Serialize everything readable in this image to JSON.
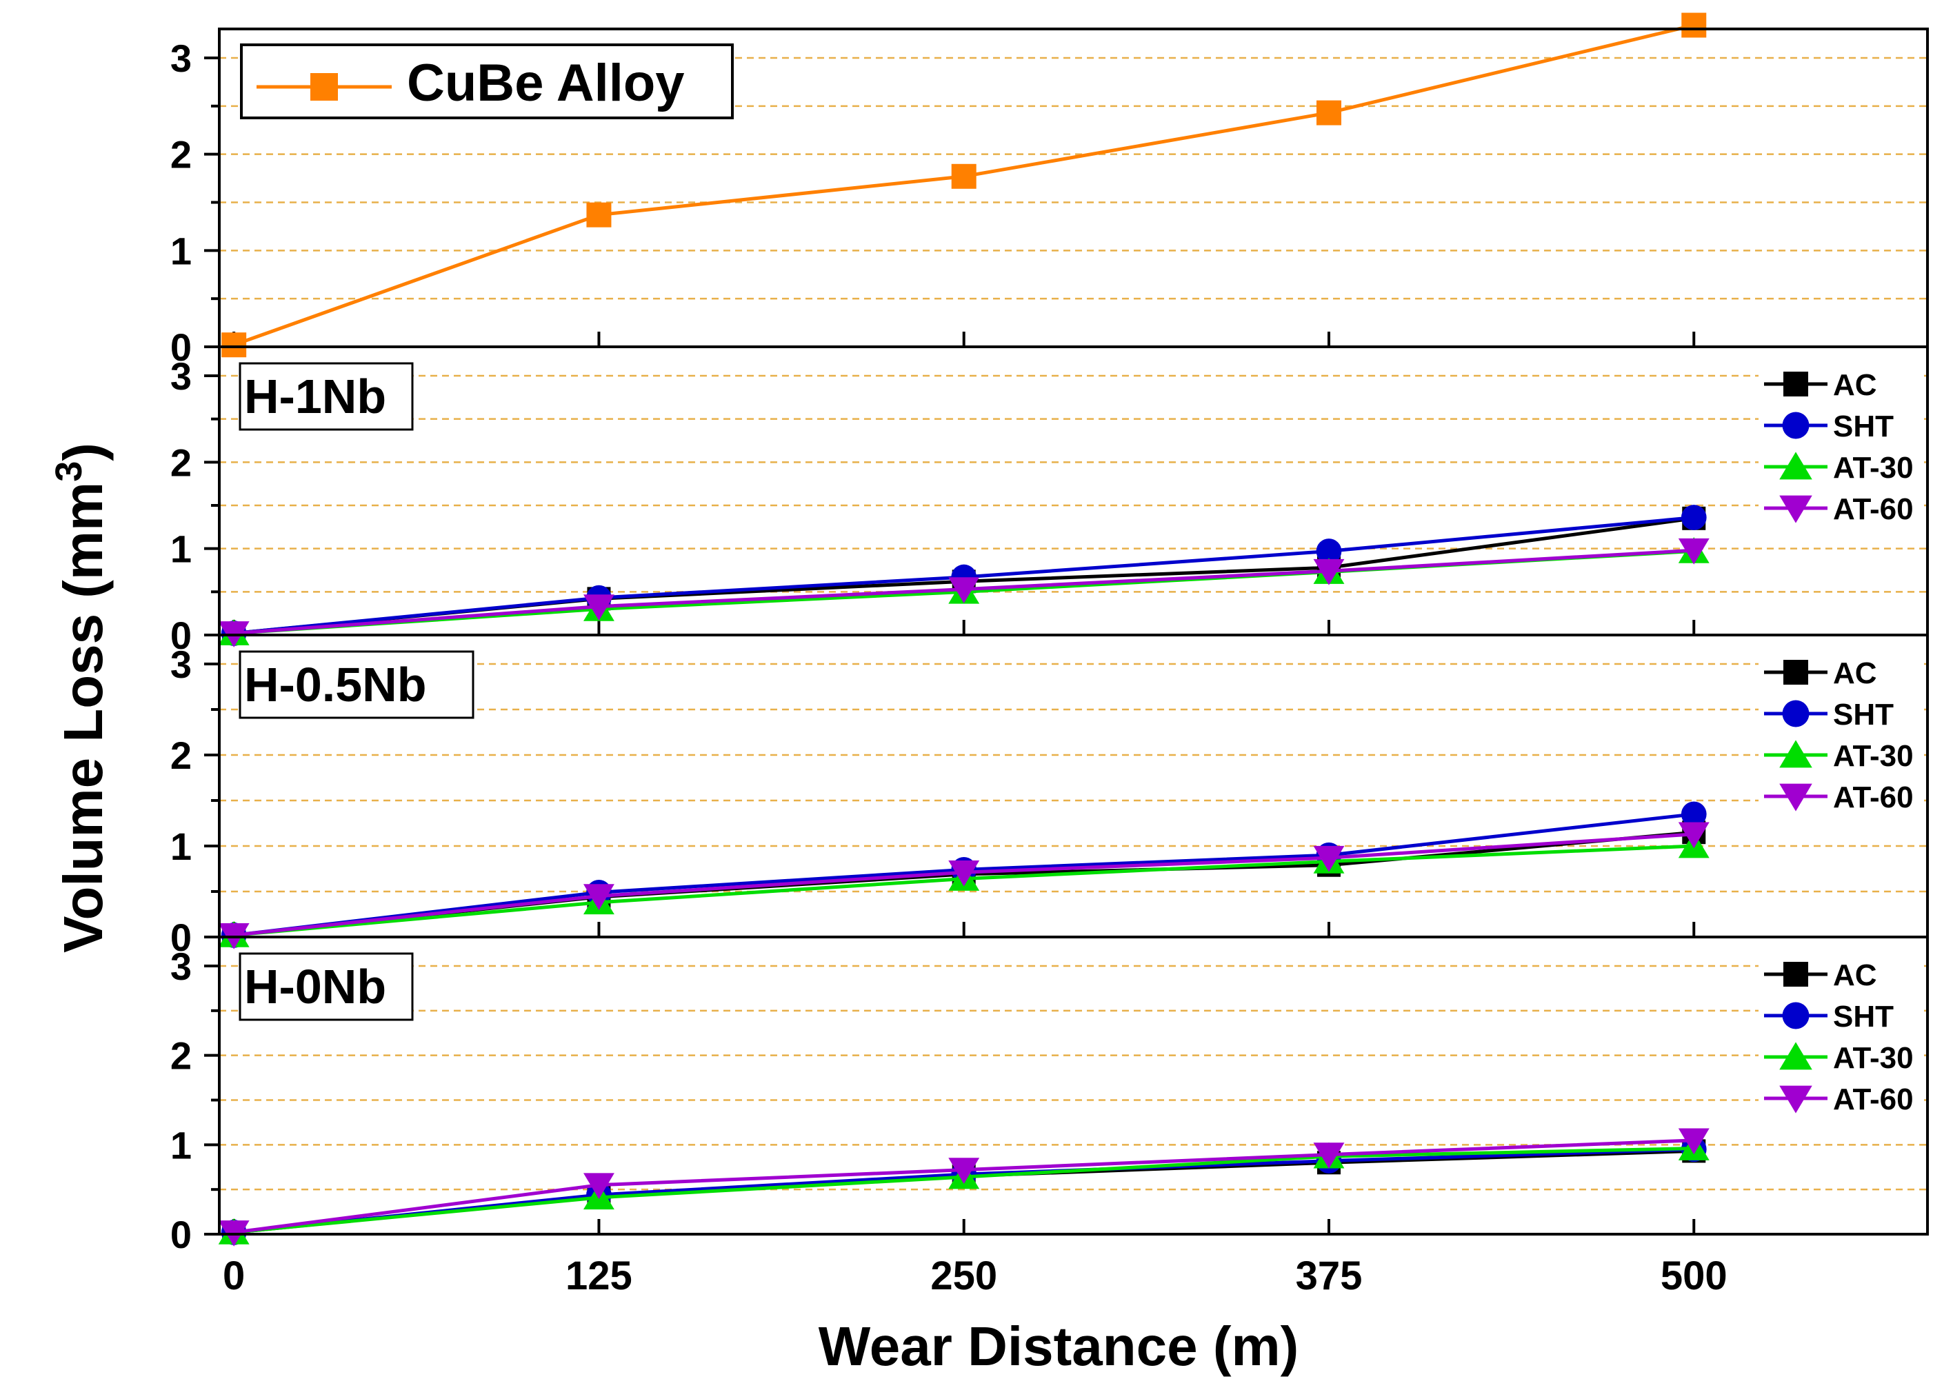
{
  "figure": {
    "xlabel": "Wear Distance (m)",
    "ylabel_main": "Volume Loss (mm",
    "ylabel_sup": "3",
    "ylabel_close": ")"
  },
  "chart_data": [
    {
      "type": "line",
      "panel_label": "CuBe Alloy",
      "x": [
        0,
        125,
        250,
        375,
        500
      ],
      "xlim": [
        -5,
        580
      ],
      "ylim": [
        0,
        3.4
      ],
      "xticks": [
        0,
        125,
        250,
        375,
        500
      ],
      "yticks": [
        0,
        1,
        2,
        3
      ],
      "grid_y": [
        0.5,
        1,
        1.5,
        2,
        2.5,
        3
      ],
      "legend_position": "top-left",
      "series": [
        {
          "name": "CuBe Alloy",
          "color": "#FF8000",
          "marker": "square",
          "values": [
            0.02,
            1.37,
            1.77,
            2.43,
            3.34
          ]
        }
      ]
    },
    {
      "type": "line",
      "panel_label": "H-1Nb",
      "x": [
        0,
        125,
        250,
        375,
        500
      ],
      "xlim": [
        -5,
        580
      ],
      "ylim": [
        0,
        3.4
      ],
      "xticks": [
        0,
        125,
        250,
        375,
        500
      ],
      "yticks": [
        0,
        1,
        2,
        3
      ],
      "grid_y": [
        0.5,
        1,
        1.5,
        2,
        2.5,
        3
      ],
      "legend_position": "top-right",
      "series": [
        {
          "name": "AC",
          "color": "#000000",
          "marker": "square",
          "values": [
            0.02,
            0.42,
            0.62,
            0.78,
            1.35
          ]
        },
        {
          "name": "SHT",
          "color": "#0000CC",
          "marker": "circle",
          "values": [
            0.02,
            0.43,
            0.67,
            0.97,
            1.36
          ]
        },
        {
          "name": "AT-30",
          "color": "#00DD00",
          "marker": "triangle-up",
          "values": [
            0.02,
            0.3,
            0.5,
            0.73,
            0.97
          ]
        },
        {
          "name": "AT-60",
          "color": "#A000D0",
          "marker": "triangle-down",
          "values": [
            0.02,
            0.33,
            0.53,
            0.74,
            0.98
          ]
        }
      ]
    },
    {
      "type": "line",
      "panel_label": "H-0.5Nb",
      "x": [
        0,
        125,
        250,
        375,
        500
      ],
      "xlim": [
        -5,
        580
      ],
      "ylim": [
        0,
        3.4
      ],
      "xticks": [
        0,
        125,
        250,
        375,
        500
      ],
      "yticks": [
        0,
        1,
        2,
        3
      ],
      "grid_y": [
        0.5,
        1,
        1.5,
        2,
        2.5,
        3
      ],
      "legend_position": "top-right",
      "series": [
        {
          "name": "AC",
          "color": "#000000",
          "marker": "square",
          "values": [
            0.02,
            0.44,
            0.69,
            0.79,
            1.15
          ]
        },
        {
          "name": "SHT",
          "color": "#0000CC",
          "marker": "circle",
          "values": [
            0.02,
            0.49,
            0.74,
            0.9,
            1.35
          ]
        },
        {
          "name": "AT-30",
          "color": "#00DD00",
          "marker": "triangle-up",
          "values": [
            0.02,
            0.38,
            0.64,
            0.83,
            1.0
          ]
        },
        {
          "name": "AT-60",
          "color": "#A000D0",
          "marker": "triangle-down",
          "values": [
            0.02,
            0.45,
            0.71,
            0.87,
            1.13
          ]
        }
      ]
    },
    {
      "type": "line",
      "panel_label": "H-0Nb",
      "x": [
        0,
        125,
        250,
        375,
        500
      ],
      "xlim": [
        -5,
        580
      ],
      "ylim": [
        0,
        3.4
      ],
      "xticks": [
        0,
        125,
        250,
        375,
        500
      ],
      "yticks": [
        0,
        1,
        2,
        3
      ],
      "grid_y": [
        0.5,
        1,
        1.5,
        2,
        2.5,
        3
      ],
      "legend_position": "top-right",
      "series": [
        {
          "name": "AC",
          "color": "#000000",
          "marker": "square",
          "values": [
            0.02,
            0.42,
            0.65,
            0.8,
            0.93
          ]
        },
        {
          "name": "SHT",
          "color": "#0000CC",
          "marker": "circle",
          "values": [
            0.02,
            0.44,
            0.67,
            0.82,
            0.95
          ]
        },
        {
          "name": "AT-30",
          "color": "#00DD00",
          "marker": "triangle-up",
          "values": [
            0.02,
            0.41,
            0.64,
            0.87,
            0.96
          ]
        },
        {
          "name": "AT-60",
          "color": "#A000D0",
          "marker": "triangle-down",
          "values": [
            0.02,
            0.55,
            0.72,
            0.89,
            1.05
          ]
        }
      ]
    }
  ]
}
